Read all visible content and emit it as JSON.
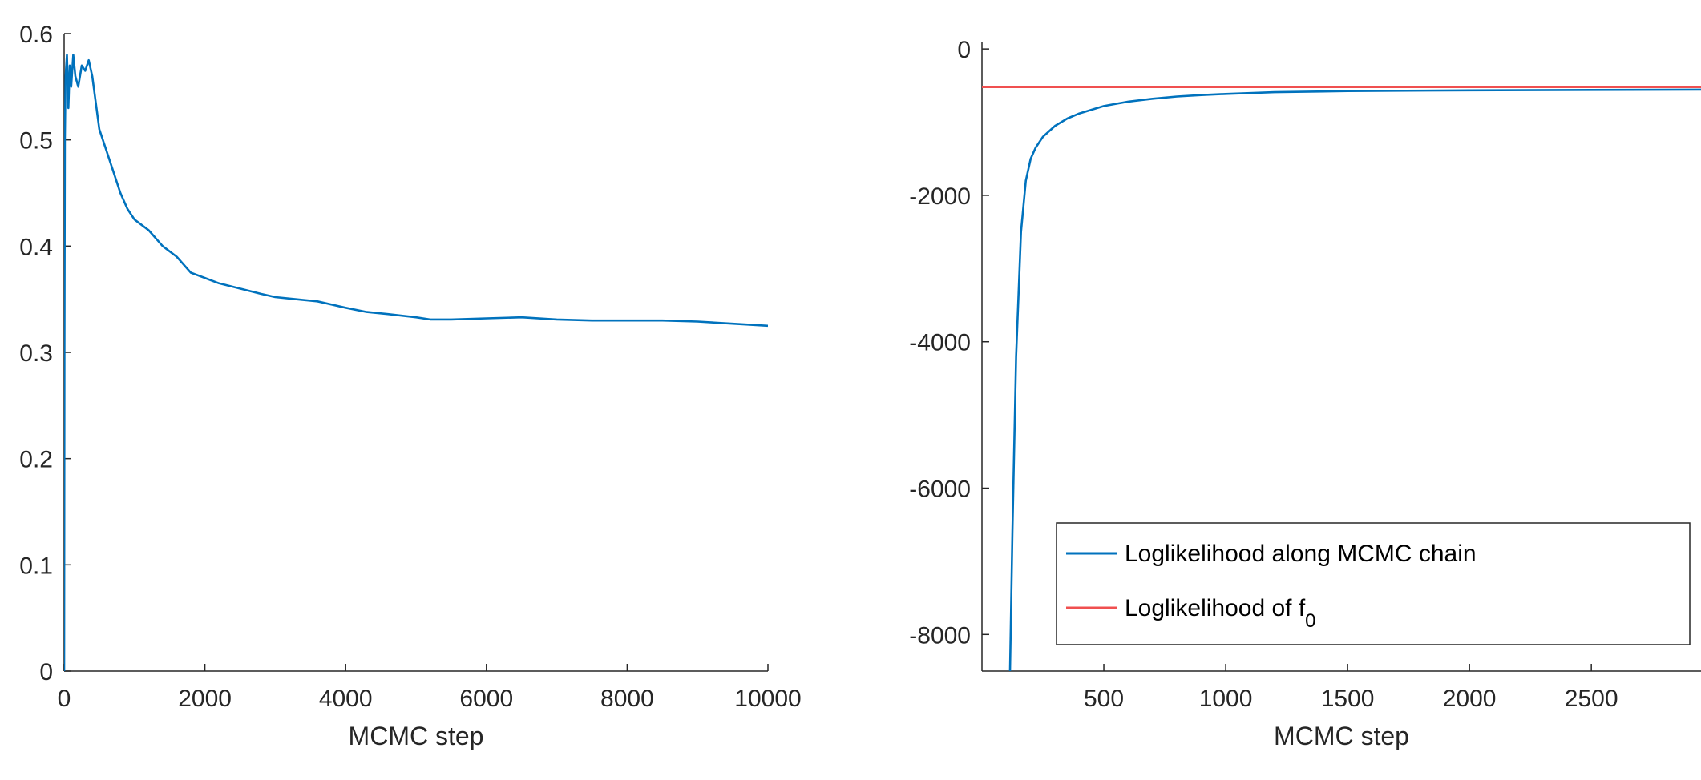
{
  "chart_data": [
    {
      "type": "line",
      "xlabel": "MCMC step",
      "ylabel": "",
      "xlim": [
        0,
        10000
      ],
      "ylim": [
        0,
        0.6
      ],
      "xticks": [
        0,
        2000,
        4000,
        6000,
        8000,
        10000
      ],
      "yticks": [
        0,
        0.1,
        0.2,
        0.3,
        0.4,
        0.5,
        0.6
      ],
      "grid": false,
      "series": [
        {
          "color": "#0072BD",
          "x": [
            0,
            5,
            10,
            20,
            40,
            60,
            80,
            100,
            130,
            160,
            200,
            250,
            300,
            350,
            400,
            500,
            600,
            700,
            800,
            900,
            1000,
            1100,
            1200,
            1400,
            1600,
            1800,
            2000,
            2200,
            2500,
            2800,
            3000,
            3300,
            3600,
            4000,
            4300,
            4600,
            5000,
            5200,
            5500,
            6000,
            6500,
            7000,
            7500,
            8000,
            8500,
            9000,
            9500,
            10000
          ],
          "y": [
            0.0,
            0.3,
            0.5,
            0.56,
            0.58,
            0.53,
            0.57,
            0.55,
            0.58,
            0.56,
            0.55,
            0.57,
            0.565,
            0.575,
            0.56,
            0.51,
            0.49,
            0.47,
            0.45,
            0.435,
            0.425,
            0.42,
            0.415,
            0.4,
            0.39,
            0.375,
            0.37,
            0.365,
            0.36,
            0.355,
            0.352,
            0.35,
            0.348,
            0.342,
            0.338,
            0.336,
            0.333,
            0.331,
            0.331,
            0.332,
            0.333,
            0.331,
            0.33,
            0.33,
            0.33,
            0.329,
            0.327,
            0.325
          ]
        }
      ]
    },
    {
      "type": "line",
      "xlabel": "MCMC step",
      "ylabel": "",
      "xlim": [
        0,
        2950
      ],
      "ylim": [
        -8500,
        100
      ],
      "xticks": [
        500,
        1000,
        1500,
        2000,
        2500
      ],
      "yticks": [
        0,
        -2000,
        -4000,
        -6000,
        -8000
      ],
      "grid": false,
      "legend_position": "bottom-right",
      "series": [
        {
          "name": "Loglikelihood along MCMC chain",
          "color": "#0072BD",
          "x": [
            115,
            125,
            140,
            160,
            180,
            200,
            220,
            250,
            300,
            350,
            400,
            500,
            600,
            700,
            800,
            900,
            1000,
            1200,
            1500,
            2000,
            2500,
            2950
          ],
          "y": [
            -8500,
            -6600,
            -4200,
            -2500,
            -1800,
            -1500,
            -1350,
            -1200,
            -1050,
            -950,
            -880,
            -780,
            -720,
            -680,
            -650,
            -630,
            -615,
            -590,
            -575,
            -565,
            -560,
            -555
          ]
        },
        {
          "name": "Loglikelihood of f",
          "name_subscript": "0",
          "color": "#F05050",
          "x": [
            0,
            2950
          ],
          "y": [
            -520,
            -520
          ]
        }
      ]
    }
  ]
}
